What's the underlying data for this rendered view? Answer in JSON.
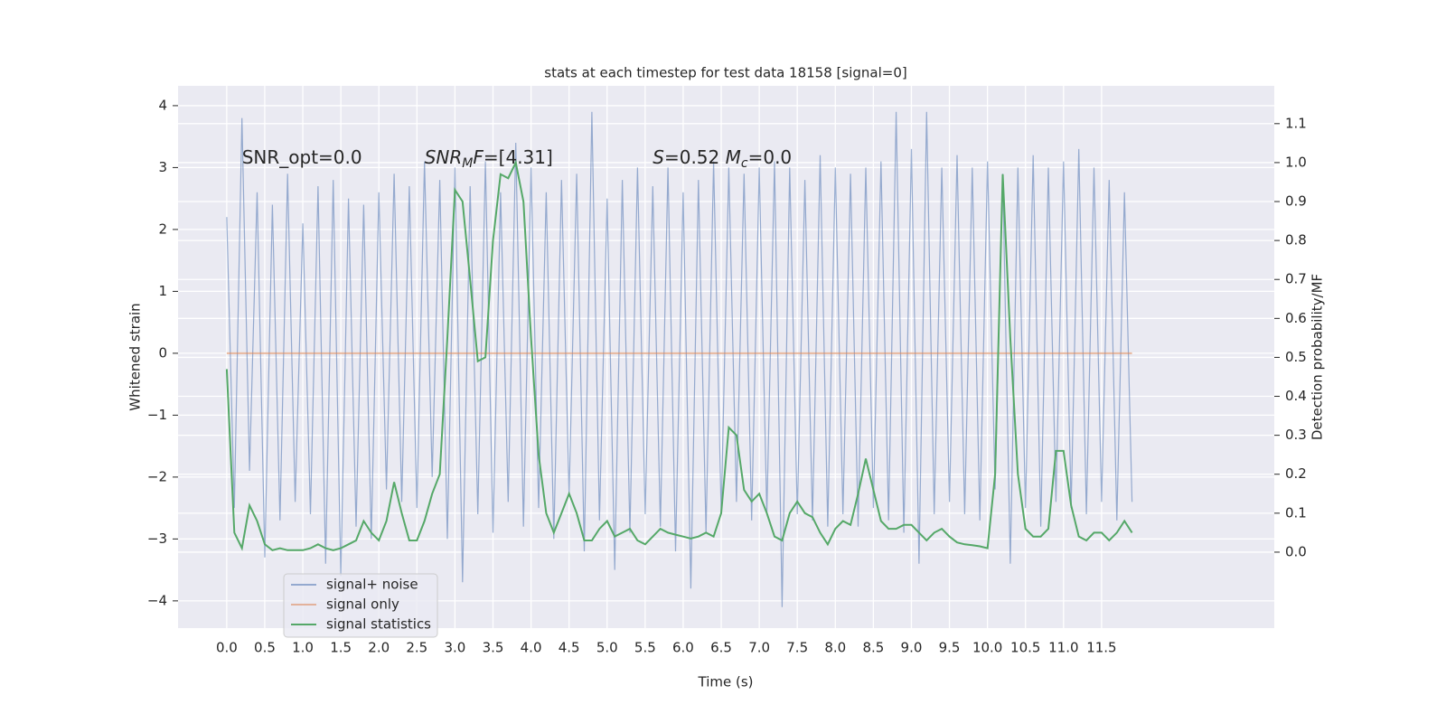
{
  "chart_data": {
    "type": "line",
    "title": "stats at each timestep for test data 18158 [signal=0]",
    "xlabel": "Time (s)",
    "ylabel": "Whitened strain",
    "y2label": "Detection probability/MF",
    "annotations": [
      {
        "x": 0.2,
        "y": 3.15,
        "parts": [
          {
            "text": "SNR_opt=0.0"
          }
        ]
      },
      {
        "x": 2.6,
        "y": 3.15,
        "parts": [
          {
            "text": "SNR",
            "style": "italic"
          },
          {
            "text": "M",
            "style": "sub"
          },
          {
            "text": "F",
            "style": "italic"
          },
          {
            "text": "=[4.31]"
          }
        ]
      },
      {
        "x": 5.6,
        "y": 3.15,
        "parts": [
          {
            "text": "S",
            "style": "italic"
          },
          {
            "text": "=0.52   "
          },
          {
            "text": "M",
            "style": "italic"
          },
          {
            "text": "c",
            "style": "sub"
          },
          {
            "text": "=0.0"
          }
        ]
      }
    ],
    "x": [
      0,
      0.1,
      0.2,
      0.3,
      0.4,
      0.5,
      0.6,
      0.7,
      0.8,
      0.9,
      1.0,
      1.1,
      1.2,
      1.3,
      1.4,
      1.5,
      1.6,
      1.7,
      1.8,
      1.9,
      2.0,
      2.1,
      2.2,
      2.3,
      2.4,
      2.5,
      2.6,
      2.7,
      2.8,
      2.9,
      3.0,
      3.1,
      3.2,
      3.3,
      3.4,
      3.5,
      3.6,
      3.7,
      3.8,
      3.9,
      4.0,
      4.1,
      4.2,
      4.3,
      4.4,
      4.5,
      4.6,
      4.7,
      4.8,
      4.9,
      5.0,
      5.1,
      5.2,
      5.3,
      5.4,
      5.5,
      5.6,
      5.7,
      5.8,
      5.9,
      6.0,
      6.1,
      6.2,
      6.3,
      6.4,
      6.5,
      6.6,
      6.7,
      6.8,
      6.9,
      7.0,
      7.1,
      7.2,
      7.3,
      7.4,
      7.5,
      7.6,
      7.7,
      7.8,
      7.9,
      8.0,
      8.1,
      8.2,
      8.3,
      8.4,
      8.5,
      8.6,
      8.7,
      8.8,
      8.9,
      9.0,
      9.1,
      9.2,
      9.3,
      9.4,
      9.5,
      9.6,
      9.7,
      9.8,
      9.9,
      10.0,
      10.1,
      10.2,
      10.3,
      10.4,
      10.5,
      10.6,
      10.7,
      10.8,
      10.9,
      11.0,
      11.1,
      11.2,
      11.3,
      11.4,
      11.5,
      11.6,
      11.7,
      11.8,
      11.9
    ],
    "series": [
      {
        "name": "signal+ noise",
        "color": "#4c72b0",
        "axis": "y",
        "values": [
          2.2,
          -2.5,
          3.8,
          -1.9,
          2.6,
          -3.3,
          2.4,
          -2.7,
          2.9,
          -2.4,
          2.1,
          -2.6,
          2.7,
          -3.4,
          2.8,
          -3.6,
          2.5,
          -2.8,
          2.4,
          -3.0,
          2.6,
          -2.2,
          2.9,
          -2.4,
          2.7,
          -2.5,
          3.1,
          -2.0,
          2.8,
          -3.0,
          3.0,
          -3.7,
          2.7,
          -2.6,
          3.1,
          -2.9,
          2.6,
          -2.4,
          3.4,
          -2.8,
          3.0,
          -2.5,
          2.6,
          -3.0,
          2.8,
          -2.3,
          2.9,
          -3.2,
          3.9,
          -2.7,
          2.5,
          -3.5,
          2.8,
          -2.9,
          3.0,
          -2.6,
          2.7,
          -2.8,
          3.0,
          -3.2,
          2.6,
          -3.8,
          2.8,
          -2.9,
          3.1,
          -2.6,
          3.0,
          -2.4,
          2.9,
          -2.7,
          3.0,
          -2.6,
          3.1,
          -4.1,
          3.0,
          -2.6,
          2.8,
          -2.7,
          3.2,
          -2.8,
          3.0,
          -2.6,
          2.9,
          -2.8,
          3.0,
          -2.5,
          3.1,
          -2.7,
          3.9,
          -2.9,
          3.3,
          -3.4,
          3.9,
          -2.6,
          3.0,
          -2.4,
          3.2,
          -2.6,
          3.0,
          -2.7,
          3.1,
          -2.2,
          2.9,
          -3.4,
          3.0,
          -2.5,
          3.2,
          -2.8,
          3.0,
          -2.4,
          3.1,
          -2.5,
          3.3,
          -2.6,
          3.0,
          -2.4,
          2.8,
          -2.7,
          2.6,
          -2.4
        ]
      },
      {
        "name": "signal only",
        "color": "#dd8452",
        "axis": "y",
        "values": [
          0,
          0,
          0,
          0,
          0,
          0,
          0,
          0,
          0,
          0,
          0,
          0,
          0,
          0,
          0,
          0,
          0,
          0,
          0,
          0,
          0,
          0,
          0,
          0,
          0,
          0,
          0,
          0,
          0,
          0,
          0,
          0,
          0,
          0,
          0,
          0,
          0,
          0,
          0,
          0,
          0,
          0,
          0,
          0,
          0,
          0,
          0,
          0,
          0,
          0,
          0,
          0,
          0,
          0,
          0,
          0,
          0,
          0,
          0,
          0,
          0,
          0,
          0,
          0,
          0,
          0,
          0,
          0,
          0,
          0,
          0,
          0,
          0,
          0,
          0,
          0,
          0,
          0,
          0,
          0,
          0,
          0,
          0,
          0,
          0,
          0,
          0,
          0,
          0,
          0,
          0,
          0,
          0,
          0,
          0,
          0,
          0,
          0,
          0,
          0,
          0,
          0,
          0,
          0,
          0,
          0,
          0,
          0,
          0,
          0,
          0,
          0,
          0,
          0,
          0,
          0,
          0,
          0,
          0,
          0
        ]
      },
      {
        "name": "signal statistics",
        "color": "#55a868",
        "axis": "y2",
        "values": [
          0.47,
          0.05,
          0.01,
          0.12,
          0.08,
          0.02,
          0.005,
          0.01,
          0.005,
          0.005,
          0.005,
          0.01,
          0.02,
          0.01,
          0.005,
          0.01,
          0.02,
          0.03,
          0.08,
          0.05,
          0.03,
          0.08,
          0.18,
          0.1,
          0.03,
          0.03,
          0.08,
          0.15,
          0.2,
          0.55,
          0.93,
          0.9,
          0.7,
          0.49,
          0.5,
          0.8,
          0.97,
          0.96,
          1.0,
          0.9,
          0.55,
          0.25,
          0.1,
          0.05,
          0.1,
          0.15,
          0.1,
          0.03,
          0.03,
          0.06,
          0.08,
          0.04,
          0.05,
          0.06,
          0.03,
          0.02,
          0.04,
          0.06,
          0.05,
          0.045,
          0.04,
          0.035,
          0.04,
          0.05,
          0.04,
          0.1,
          0.32,
          0.3,
          0.16,
          0.13,
          0.15,
          0.1,
          0.04,
          0.03,
          0.1,
          0.13,
          0.1,
          0.09,
          0.05,
          0.02,
          0.06,
          0.08,
          0.07,
          0.15,
          0.24,
          0.16,
          0.08,
          0.06,
          0.06,
          0.07,
          0.07,
          0.05,
          0.03,
          0.05,
          0.06,
          0.04,
          0.025,
          0.02,
          0.018,
          0.015,
          0.01,
          0.2,
          0.97,
          0.55,
          0.2,
          0.06,
          0.04,
          0.04,
          0.06,
          0.26,
          0.26,
          0.12,
          0.04,
          0.03,
          0.05,
          0.05,
          0.03,
          0.05,
          0.08,
          0.05
        ]
      }
    ],
    "xlim": [
      -0.64,
      13.77
    ],
    "ylim": [
      -4.44,
      4.32
    ],
    "y2lim": [
      -0.195,
      1.197
    ],
    "xticks": [
      {
        "value": 0,
        "label": "0.0"
      },
      {
        "value": 0.5,
        "label": "0.5"
      },
      {
        "value": 1,
        "label": "1.0"
      },
      {
        "value": 1.5,
        "label": "1.5"
      },
      {
        "value": 2,
        "label": "2.0"
      },
      {
        "value": 2.5,
        "label": "2.5"
      },
      {
        "value": 3,
        "label": "3.0"
      },
      {
        "value": 3.5,
        "label": "3.5"
      },
      {
        "value": 4,
        "label": "4.0"
      },
      {
        "value": 4.5,
        "label": "4.5"
      },
      {
        "value": 5,
        "label": "5.0"
      },
      {
        "value": 5.5,
        "label": "5.5"
      },
      {
        "value": 6,
        "label": "6.0"
      },
      {
        "value": 6.5,
        "label": "6.5"
      },
      {
        "value": 7,
        "label": "7.0"
      },
      {
        "value": 7.5,
        "label": "7.5"
      },
      {
        "value": 8,
        "label": "8.0"
      },
      {
        "value": 8.5,
        "label": "8.5"
      },
      {
        "value": 9,
        "label": "9.0"
      },
      {
        "value": 9.5,
        "label": "9.5"
      },
      {
        "value": 10,
        "label": "10.0"
      },
      {
        "value": 10.5,
        "label": "10.5"
      },
      {
        "value": 11,
        "label": "11.0"
      },
      {
        "value": 11.5,
        "label": "11.5"
      }
    ],
    "yticks": [
      {
        "value": -4,
        "label": "−4"
      },
      {
        "value": -3,
        "label": "−3"
      },
      {
        "value": -2,
        "label": "−2"
      },
      {
        "value": -1,
        "label": "−1"
      },
      0,
      1,
      2,
      3,
      4
    ],
    "y2ticks": [
      {
        "value": 0,
        "label": "0.0"
      },
      {
        "value": 0.1,
        "label": "0.1"
      },
      {
        "value": 0.2,
        "label": "0.2"
      },
      {
        "value": 0.3,
        "label": "0.3"
      },
      {
        "value": 0.4,
        "label": "0.4"
      },
      {
        "value": 0.5,
        "label": "0.5"
      },
      {
        "value": 0.6,
        "label": "0.6"
      },
      {
        "value": 0.7,
        "label": "0.7"
      },
      {
        "value": 0.8,
        "label": "0.8"
      },
      {
        "value": 0.9,
        "label": "0.9"
      },
      {
        "value": 1,
        "label": "1.0"
      },
      {
        "value": 1.1,
        "label": "1.1"
      }
    ],
    "grid": true,
    "legend": "lower left"
  }
}
